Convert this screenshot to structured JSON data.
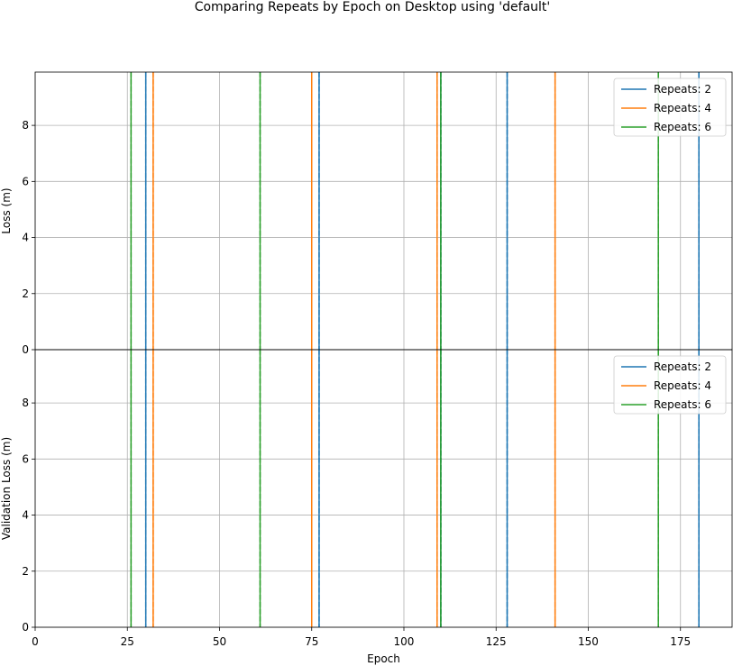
{
  "chart_data": {
    "type": "line",
    "title": "Comparing Repeats by Epoch on Desktop using 'default'",
    "xlabel": "Epoch",
    "xlim": [
      0,
      189
    ],
    "xticks": [
      0,
      25,
      50,
      75,
      100,
      125,
      150,
      175
    ],
    "grid": true,
    "colors": {
      "Repeats: 2": "#1f77b4",
      "Repeats: 4": "#ff7f0e",
      "Repeats: 6": "#2ca02c"
    },
    "panels": [
      {
        "ylabel": "Loss (m)",
        "ylim": [
          0,
          9.9
        ],
        "yticks": [
          0,
          2,
          4,
          6,
          8
        ],
        "legend": "top-right",
        "series": [
          {
            "name": "Repeats: 2",
            "solid_x": [
              30,
              77,
              110,
              128,
              180
            ],
            "dashed_x": [
              30,
              77,
              110,
              128,
              180
            ]
          },
          {
            "name": "Repeats: 4",
            "solid_x": [
              32,
              75,
              109,
              141
            ],
            "dashed_x": [
              32,
              75,
              109,
              141
            ]
          },
          {
            "name": "Repeats: 6",
            "solid_x": [
              26,
              61,
              110,
              169
            ],
            "dashed_x": [
              26,
              61,
              110,
              169
            ]
          }
        ]
      },
      {
        "ylabel": "Validation Loss (m)",
        "ylim": [
          0,
          9.9
        ],
        "yticks": [
          0,
          2,
          4,
          6,
          8
        ],
        "legend": "top-right",
        "series": [
          {
            "name": "Repeats: 2",
            "solid_x": [
              30,
              77,
              110,
              128,
              180
            ],
            "dashed_x": [
              30,
              77,
              110,
              128,
              180
            ]
          },
          {
            "name": "Repeats: 4",
            "solid_x": [
              32,
              75,
              109,
              141
            ],
            "dashed_x": [
              32,
              75,
              109,
              141
            ]
          },
          {
            "name": "Repeats: 6",
            "solid_x": [
              26,
              61,
              110,
              169
            ],
            "dashed_x": [
              26,
              61,
              110,
              169
            ]
          }
        ]
      }
    ]
  }
}
